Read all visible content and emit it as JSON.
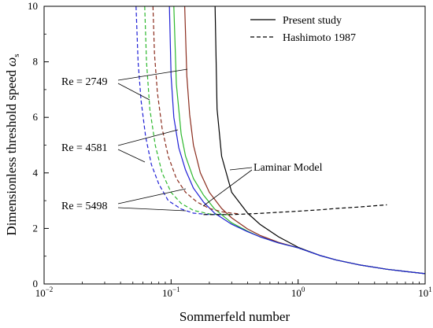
{
  "chart_data": {
    "type": "line",
    "xscale": "log",
    "xlim": [
      0.01,
      10
    ],
    "ylim": [
      0,
      10
    ],
    "xlabel": "Sommerfeld number",
    "ylabel_main": "Dimensionless threshold speed ",
    "ylabel_symbol": "ω",
    "ylabel_sub": "s",
    "x_ticks": [
      {
        "value": 0.01,
        "base": "10",
        "exp": "−2"
      },
      {
        "value": 0.1,
        "base": "10",
        "exp": "−1"
      },
      {
        "value": 1,
        "base": "10",
        "exp": "0"
      },
      {
        "value": 10,
        "base": "10",
        "exp": "1"
      }
    ],
    "y_ticks": [
      0,
      2,
      4,
      6,
      8,
      10
    ],
    "legend": {
      "placement": "top-right",
      "entries": [
        {
          "label": "Present study",
          "style": "solid"
        },
        {
          "label": "Hashimoto 1987",
          "style": "dashed"
        }
      ]
    },
    "annotations": [
      {
        "id": "re-2749",
        "text": "Re = 2749"
      },
      {
        "id": "re-4581",
        "text": "Re = 4581"
      },
      {
        "id": "re-5498",
        "text": "Re = 5498"
      },
      {
        "id": "laminar",
        "text": "Laminar Model"
      }
    ],
    "series": [
      {
        "style": "solid",
        "color": "#000000",
        "x": [
          0.222,
          0.23,
          0.25,
          0.3,
          0.4,
          0.5,
          0.7,
          1,
          1.5,
          2,
          3,
          5,
          7,
          10
        ],
        "y": [
          10,
          6.3,
          4.6,
          3.3,
          2.55,
          2.15,
          1.7,
          1.32,
          1.02,
          0.86,
          0.69,
          0.53,
          0.45,
          0.37
        ]
      },
      {
        "style": "solid",
        "color": "#8B2D1E",
        "x": [
          0.128,
          0.133,
          0.14,
          0.15,
          0.17,
          0.2,
          0.25,
          0.3,
          0.4,
          0.5,
          0.7,
          1,
          1.5,
          2,
          3,
          5,
          7,
          10
        ],
        "y": [
          10,
          7.5,
          6.1,
          5,
          4,
          3.3,
          2.72,
          2.38,
          1.98,
          1.75,
          1.5,
          1.3,
          1.02,
          0.86,
          0.69,
          0.53,
          0.45,
          0.37
        ]
      },
      {
        "style": "solid",
        "color": "#2DB82D",
        "x": [
          0.105,
          0.11,
          0.12,
          0.13,
          0.15,
          0.18,
          0.22,
          0.3,
          0.4,
          0.5,
          0.7,
          1,
          1.5,
          2,
          3,
          5,
          7,
          10
        ],
        "y": [
          10,
          7.2,
          5.4,
          4.6,
          3.8,
          3.2,
          2.7,
          2.2,
          1.9,
          1.7,
          1.48,
          1.3,
          1.02,
          0.86,
          0.69,
          0.53,
          0.45,
          0.37
        ]
      },
      {
        "style": "solid",
        "color": "#1F1FD6",
        "x": [
          0.097,
          0.1,
          0.105,
          0.115,
          0.13,
          0.15,
          0.18,
          0.22,
          0.3,
          0.4,
          0.5,
          0.7,
          1,
          1.5,
          2,
          3,
          5,
          7,
          10
        ],
        "y": [
          10,
          7.5,
          6,
          4.9,
          4.1,
          3.45,
          2.95,
          2.55,
          2.15,
          1.88,
          1.7,
          1.48,
          1.3,
          1.02,
          0.86,
          0.69,
          0.53,
          0.45,
          0.37
        ]
      },
      {
        "style": "dashed",
        "color": "#8B2D1E",
        "x": [
          0.072,
          0.074,
          0.078,
          0.085,
          0.095,
          0.11,
          0.13,
          0.16,
          0.2,
          0.25,
          0.3,
          0.35
        ],
        "y": [
          10,
          8.3,
          6.9,
          5.6,
          4.6,
          3.8,
          3.3,
          2.95,
          2.72,
          2.6,
          2.55,
          2.52
        ]
      },
      {
        "style": "dashed",
        "color": "#2DB82D",
        "x": [
          0.062,
          0.064,
          0.068,
          0.075,
          0.085,
          0.1,
          0.12,
          0.15,
          0.2,
          0.25,
          0.3
        ],
        "y": [
          10,
          8,
          6.3,
          5.0,
          4.0,
          3.3,
          2.9,
          2.65,
          2.52,
          2.5,
          2.5
        ]
      },
      {
        "style": "dashed",
        "color": "#1F1FD6",
        "x": [
          0.053,
          0.055,
          0.058,
          0.063,
          0.07,
          0.08,
          0.095,
          0.12,
          0.15,
          0.2,
          0.25
        ],
        "y": [
          10,
          8,
          6.6,
          5.3,
          4.3,
          3.6,
          3.0,
          2.7,
          2.55,
          2.5,
          2.5
        ]
      },
      {
        "style": "dashed",
        "color": "#000000",
        "x": [
          0.18,
          0.22,
          0.3,
          0.4,
          0.5,
          0.7,
          1,
          1.5,
          2,
          3,
          5
        ],
        "y": [
          2.5,
          2.5,
          2.5,
          2.52,
          2.54,
          2.58,
          2.62,
          2.67,
          2.72,
          2.77,
          2.85
        ]
      }
    ]
  }
}
